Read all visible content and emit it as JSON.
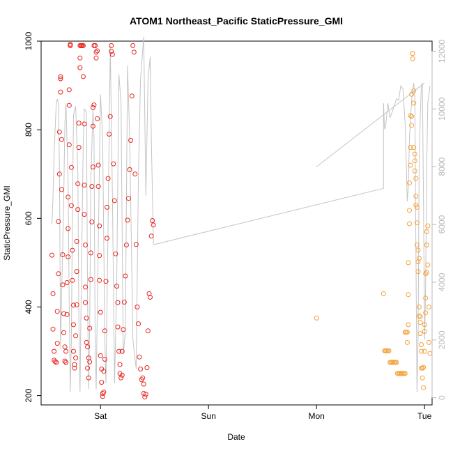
{
  "chart_data": {
    "type": "scatter",
    "title": "ATOM1 Northeast_Pacific StaticPressure_GMI",
    "xlabel": "Date",
    "ylabel": "StaticPressure_GMI",
    "x_ticks": [
      {
        "label": "Sat",
        "day": 1
      },
      {
        "label": "Sun",
        "day": 2
      },
      {
        "label": "Mon",
        "day": 3
      },
      {
        "label": "Tue",
        "day": 4
      }
    ],
    "xlim": [
      0.45,
      4.07
    ],
    "ylim": [
      179,
      1000
    ],
    "y_ticks": [
      200,
      400,
      600,
      800,
      1000
    ],
    "y2_ticks": [
      0,
      2000,
      4000,
      6000,
      8000,
      10000,
      12000
    ],
    "y2lim": [
      -250,
      12350
    ],
    "colors": {
      "series_a": "#e8231d",
      "series_b": "#f5a13a",
      "line": "#c4c4c4",
      "right_axis": "#b8b8b8"
    },
    "series": [
      {
        "points": [
          [
            0.55,
            517
          ],
          [
            0.56,
            430
          ],
          [
            0.56,
            350
          ],
          [
            0.57,
            300
          ],
          [
            0.57,
            280
          ],
          [
            0.58,
            277
          ],
          [
            0.59,
            275
          ],
          [
            0.6,
            318
          ],
          [
            0.6,
            390
          ],
          [
            0.61,
            475
          ],
          [
            0.61,
            593
          ],
          [
            0.62,
            700
          ],
          [
            0.62,
            795
          ],
          [
            0.63,
            885
          ],
          [
            0.63,
            920
          ],
          [
            0.63,
            915
          ],
          [
            0.64,
            778
          ],
          [
            0.64,
            665
          ],
          [
            0.65,
            518
          ],
          [
            0.65,
            450
          ],
          [
            0.66,
            385
          ],
          [
            0.66,
            342
          ],
          [
            0.67,
            310
          ],
          [
            0.67,
            278
          ],
          [
            0.68,
            275
          ],
          [
            0.68,
            300
          ],
          [
            0.69,
            383
          ],
          [
            0.69,
            455
          ],
          [
            0.7,
            513
          ],
          [
            0.7,
            577
          ],
          [
            0.7,
            648
          ],
          [
            0.71,
            766
          ],
          [
            0.71,
            855
          ],
          [
            0.71,
            890
          ],
          [
            0.72,
            990
          ],
          [
            0.72,
            993
          ],
          [
            0.72,
            990
          ],
          [
            0.73,
            715
          ],
          [
            0.73,
            629
          ],
          [
            0.74,
            528
          ],
          [
            0.74,
            460
          ],
          [
            0.75,
            404
          ],
          [
            0.75,
            360
          ],
          [
            0.75,
            300
          ],
          [
            0.76,
            270
          ],
          [
            0.76,
            262
          ],
          [
            0.77,
            285
          ],
          [
            0.77,
            335
          ],
          [
            0.78,
            405
          ],
          [
            0.78,
            480
          ],
          [
            0.78,
            548
          ],
          [
            0.79,
            620
          ],
          [
            0.79,
            678
          ],
          [
            0.8,
            760
          ],
          [
            0.8,
            815
          ],
          [
            0.81,
            940
          ],
          [
            0.81,
            962
          ],
          [
            0.81,
            990
          ],
          [
            0.82,
            990
          ],
          [
            0.82,
            990
          ],
          [
            0.83,
            990
          ],
          [
            0.83,
            990
          ],
          [
            0.84,
            990
          ],
          [
            0.84,
            920
          ],
          [
            0.85,
            813
          ],
          [
            0.85,
            675
          ],
          [
            0.85,
            609
          ],
          [
            0.86,
            540
          ],
          [
            0.86,
            445
          ],
          [
            0.86,
            410
          ],
          [
            0.87,
            375
          ],
          [
            0.87,
            320
          ],
          [
            0.88,
            310
          ],
          [
            0.88,
            262
          ],
          [
            0.89,
            285
          ],
          [
            0.89,
            240
          ],
          [
            0.9,
            276
          ],
          [
            0.9,
            352
          ],
          [
            0.91,
            462
          ],
          [
            0.91,
            522
          ],
          [
            0.92,
            592
          ],
          [
            0.92,
            672
          ],
          [
            0.93,
            716
          ],
          [
            0.93,
            808
          ],
          [
            0.93,
            850
          ],
          [
            0.94,
            856
          ],
          [
            0.94,
            990
          ],
          [
            0.95,
            990
          ],
          [
            0.95,
            990
          ],
          [
            0.96,
            962
          ],
          [
            0.96,
            975
          ],
          [
            0.97,
            978
          ],
          [
            0.97,
            825
          ],
          [
            0.98,
            720
          ],
          [
            0.98,
            672
          ],
          [
            0.99,
            583
          ],
          [
            0.99,
            516
          ],
          [
            0.99,
            460
          ],
          [
            1.0,
            388
          ],
          [
            1.0,
            290
          ],
          [
            1.01,
            260
          ],
          [
            1.01,
            230
          ],
          [
            1.02,
            205
          ],
          [
            1.02,
            198
          ],
          [
            1.03,
            208
          ],
          [
            1.03,
            255
          ],
          [
            1.04,
            282
          ],
          [
            1.04,
            346
          ],
          [
            1.05,
            458
          ],
          [
            1.06,
            555
          ],
          [
            1.06,
            625
          ],
          [
            1.07,
            690
          ],
          [
            1.08,
            790
          ],
          [
            1.09,
            830
          ],
          [
            1.1,
            977
          ],
          [
            1.1,
            990
          ],
          [
            1.11,
            970
          ],
          [
            1.12,
            723
          ],
          [
            1.13,
            640
          ],
          [
            1.14,
            520
          ],
          [
            1.15,
            447
          ],
          [
            1.16,
            410
          ],
          [
            1.16,
            355
          ],
          [
            1.17,
            300
          ],
          [
            1.18,
            270
          ],
          [
            1.18,
            250
          ],
          [
            1.19,
            240
          ],
          [
            1.2,
            246
          ],
          [
            1.2,
            300
          ],
          [
            1.21,
            349
          ],
          [
            1.22,
            411
          ],
          [
            1.23,
            470
          ],
          [
            1.24,
            540
          ],
          [
            1.25,
            596
          ],
          [
            1.26,
            645
          ],
          [
            1.27,
            710
          ],
          [
            1.28,
            776
          ],
          [
            1.29,
            876
          ],
          [
            1.3,
            990
          ],
          [
            1.31,
            975
          ],
          [
            1.32,
            700
          ],
          [
            1.33,
            541
          ],
          [
            1.34,
            400
          ],
          [
            1.35,
            362
          ],
          [
            1.36,
            287
          ],
          [
            1.37,
            260
          ],
          [
            1.38,
            236
          ],
          [
            1.39,
            240
          ],
          [
            1.4,
            226
          ],
          [
            1.4,
            205
          ],
          [
            1.41,
            197
          ],
          [
            1.42,
            203
          ],
          [
            1.43,
            263
          ],
          [
            1.44,
            346
          ],
          [
            1.45,
            430
          ],
          [
            1.46,
            422
          ],
          [
            1.47,
            560
          ],
          [
            1.48,
            595
          ],
          [
            1.49,
            585
          ]
        ]
      },
      {
        "points": [
          [
            3.0,
            375
          ],
          [
            3.62,
            430
          ],
          [
            3.63,
            301
          ],
          [
            3.64,
            301
          ],
          [
            3.65,
            301
          ],
          [
            3.66,
            301
          ],
          [
            3.67,
            301
          ],
          [
            3.68,
            275
          ],
          [
            3.69,
            275
          ],
          [
            3.7,
            275
          ],
          [
            3.71,
            275
          ],
          [
            3.72,
            275
          ],
          [
            3.73,
            275
          ],
          [
            3.74,
            275
          ],
          [
            3.75,
            250
          ],
          [
            3.76,
            250
          ],
          [
            3.77,
            250
          ],
          [
            3.78,
            250
          ],
          [
            3.79,
            250
          ],
          [
            3.8,
            250
          ],
          [
            3.81,
            250
          ],
          [
            3.82,
            250
          ],
          [
            3.82,
            343
          ],
          [
            3.83,
            343
          ],
          [
            3.84,
            343
          ],
          [
            3.84,
            320
          ],
          [
            3.85,
            500
          ],
          [
            3.85,
            428
          ],
          [
            3.85,
            360
          ],
          [
            3.86,
            588
          ],
          [
            3.86,
            618
          ],
          [
            3.86,
            680
          ],
          [
            3.87,
            720
          ],
          [
            3.87,
            760
          ],
          [
            3.87,
            832
          ],
          [
            3.88,
            830
          ],
          [
            3.88,
            880
          ],
          [
            3.88,
            810
          ],
          [
            3.89,
            960
          ],
          [
            3.89,
            972
          ],
          [
            3.89,
            972
          ],
          [
            3.9,
            888
          ],
          [
            3.9,
            860
          ],
          [
            3.9,
            760
          ],
          [
            3.91,
            745
          ],
          [
            3.91,
            730
          ],
          [
            3.91,
            707
          ],
          [
            3.92,
            690
          ],
          [
            3.92,
            650
          ],
          [
            3.92,
            630
          ],
          [
            3.93,
            625
          ],
          [
            3.93,
            590
          ],
          [
            3.93,
            540
          ],
          [
            3.94,
            528
          ],
          [
            3.94,
            502
          ],
          [
            3.94,
            480
          ],
          [
            3.95,
            510
          ],
          [
            3.95,
            400
          ],
          [
            3.95,
            380
          ],
          [
            3.96,
            378
          ],
          [
            3.96,
            365
          ],
          [
            3.96,
            340
          ],
          [
            3.97,
            315
          ],
          [
            3.97,
            300
          ],
          [
            3.97,
            262
          ],
          [
            3.98,
            262
          ],
          [
            3.98,
            262
          ],
          [
            3.98,
            240
          ],
          [
            3.99,
            218
          ],
          [
            3.99,
            264
          ],
          [
            4.0,
            300
          ],
          [
            4.0,
            345
          ],
          [
            4.0,
            360
          ],
          [
            4.01,
            387
          ],
          [
            4.01,
            420
          ],
          [
            4.01,
            475
          ],
          [
            4.02,
            478
          ],
          [
            4.02,
            540
          ],
          [
            4.02,
            570
          ],
          [
            4.03,
            583
          ],
          [
            4.03,
            495
          ],
          [
            4.04,
            400
          ],
          [
            4.04,
            320
          ],
          [
            4.05,
            295
          ]
        ]
      }
    ],
    "line_points": [
      [
        0.55,
        6000
      ],
      [
        0.56,
        6900
      ],
      [
        0.57,
        8400
      ],
      [
        0.59,
        10200
      ],
      [
        0.6,
        10350
      ],
      [
        0.61,
        10200
      ],
      [
        0.62,
        8000
      ],
      [
        0.63,
        1700
      ],
      [
        0.64,
        3500
      ],
      [
        0.66,
        7000
      ],
      [
        0.67,
        9500
      ],
      [
        0.68,
        10200
      ],
      [
        0.7,
        7600
      ],
      [
        0.71,
        3200
      ],
      [
        0.72,
        200
      ],
      [
        0.73,
        2000
      ],
      [
        0.74,
        6500
      ],
      [
        0.75,
        9800
      ],
      [
        0.77,
        10100
      ],
      [
        0.79,
        7800
      ],
      [
        0.8,
        2600
      ],
      [
        0.81,
        200
      ],
      [
        0.82,
        3200
      ],
      [
        0.84,
        8800
      ],
      [
        0.85,
        10000
      ],
      [
        0.87,
        9900
      ],
      [
        0.88,
        3500
      ],
      [
        0.89,
        300
      ],
      [
        0.9,
        2500
      ],
      [
        0.91,
        7500
      ],
      [
        0.93,
        10000
      ],
      [
        0.94,
        9000
      ],
      [
        0.95,
        2000
      ],
      [
        0.96,
        300
      ],
      [
        0.98,
        5500
      ],
      [
        1.0,
        10500
      ],
      [
        1.02,
        9000
      ],
      [
        1.04,
        2000
      ],
      [
        1.05,
        500
      ],
      [
        1.07,
        6000
      ],
      [
        1.09,
        12200
      ],
      [
        1.11,
        7000
      ],
      [
        1.13,
        500
      ],
      [
        1.15,
        4000
      ],
      [
        1.17,
        11200
      ],
      [
        1.19,
        10200
      ],
      [
        1.21,
        1500
      ],
      [
        1.23,
        2300
      ],
      [
        1.25,
        11500
      ],
      [
        1.27,
        9000
      ],
      [
        1.3,
        2000
      ],
      [
        1.33,
        1000
      ],
      [
        1.35,
        7500
      ],
      [
        1.37,
        11000
      ],
      [
        1.4,
        12500
      ],
      [
        1.42,
        7000
      ],
      [
        1.44,
        11000
      ],
      [
        1.46,
        11800
      ],
      [
        1.47,
        9000
      ],
      [
        1.49,
        5300
      ],
      [
        3.62,
        7250
      ],
      [
        3.62,
        10200
      ],
      [
        3.63,
        9300
      ],
      [
        3.64,
        9400
      ],
      [
        3.66,
        10200
      ],
      [
        3.68,
        9700
      ],
      [
        3.71,
        10000
      ],
      [
        3.74,
        10350
      ],
      [
        3.76,
        10300
      ],
      [
        3.78,
        10800
      ],
      [
        3.8,
        10700
      ],
      [
        3.82,
        9500
      ],
      [
        3.84,
        6800
      ],
      [
        3.85,
        7300
      ],
      [
        3.86,
        9000
      ],
      [
        3.88,
        10300
      ],
      [
        3.9,
        10900
      ],
      [
        3.91,
        10400
      ],
      [
        3.92,
        5000
      ],
      [
        3.93,
        200
      ],
      [
        3.94,
        2000
      ],
      [
        3.95,
        8000
      ],
      [
        3.96,
        9700
      ],
      [
        3.97,
        10800
      ],
      [
        3.98,
        10900
      ],
      [
        3.99,
        7000
      ],
      [
        4.0,
        2000
      ],
      [
        4.01,
        3800
      ],
      [
        4.02,
        8000
      ],
      [
        4.03,
        10200
      ],
      [
        4.05,
        10800
      ]
    ],
    "line_segments": [
      {
        "from": [
          0.55,
          6000
        ],
        "to": [
          0.55,
          6000
        ]
      },
      {
        "from": [
          3.0,
          8000
        ],
        "to": [
          4.0,
          10900
        ]
      }
    ],
    "line_bridge": [
      [
        1.49,
        5300
      ],
      [
        3.62,
        7250
      ]
    ]
  }
}
